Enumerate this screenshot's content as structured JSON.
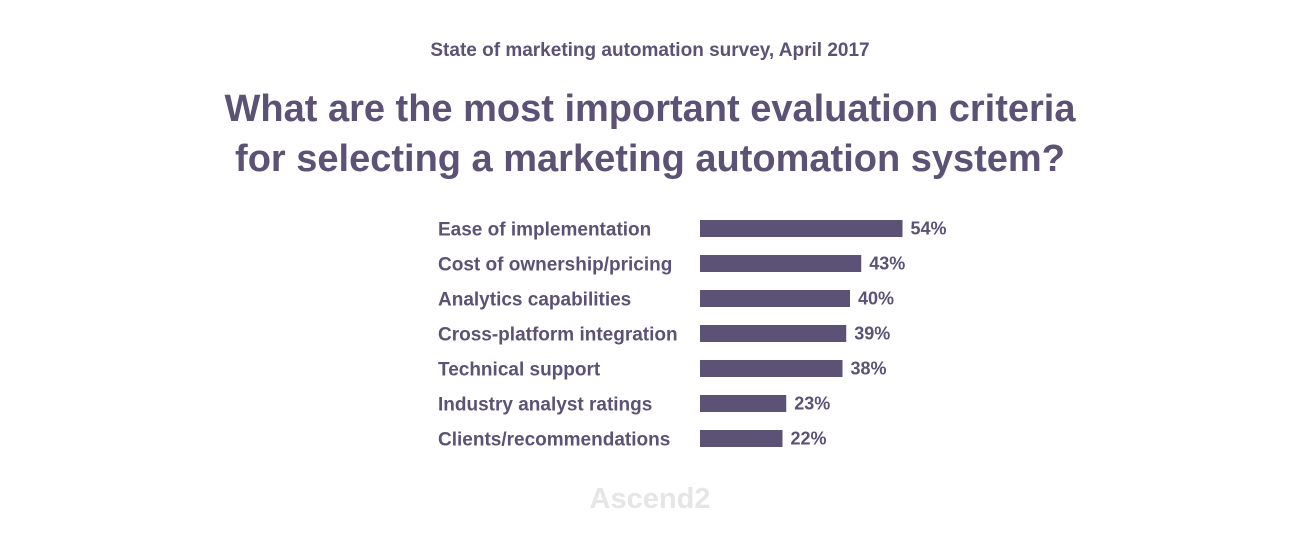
{
  "header": {
    "subtitle": "State of marketing automation survey, April 2017",
    "title_line1": "What are the most important evaluation criteria",
    "title_line2": "for selecting a marketing automation system?"
  },
  "watermark": "Ascend2",
  "colors": {
    "text": "#5b5275",
    "bar": "#5b5275",
    "watermark": "#e6e6e6"
  },
  "chart_data": {
    "type": "bar",
    "orientation": "horizontal",
    "title": "What are the most important evaluation criteria for selecting a marketing automation system?",
    "subtitle": "State of marketing automation survey, April 2017",
    "categories": [
      "Ease of implementation",
      "Cost of ownership/pricing",
      "Analytics capabilities",
      "Cross-platform integration",
      "Technical support",
      "Industry analyst ratings",
      "Clients/recommendations"
    ],
    "values": [
      54,
      43,
      40,
      39,
      38,
      23,
      22
    ],
    "value_labels": [
      "54%",
      "43%",
      "40%",
      "39%",
      "38%",
      "23%",
      "22%"
    ],
    "unit": "%",
    "xlim": [
      0,
      100
    ],
    "grid": false,
    "legend": "none"
  }
}
